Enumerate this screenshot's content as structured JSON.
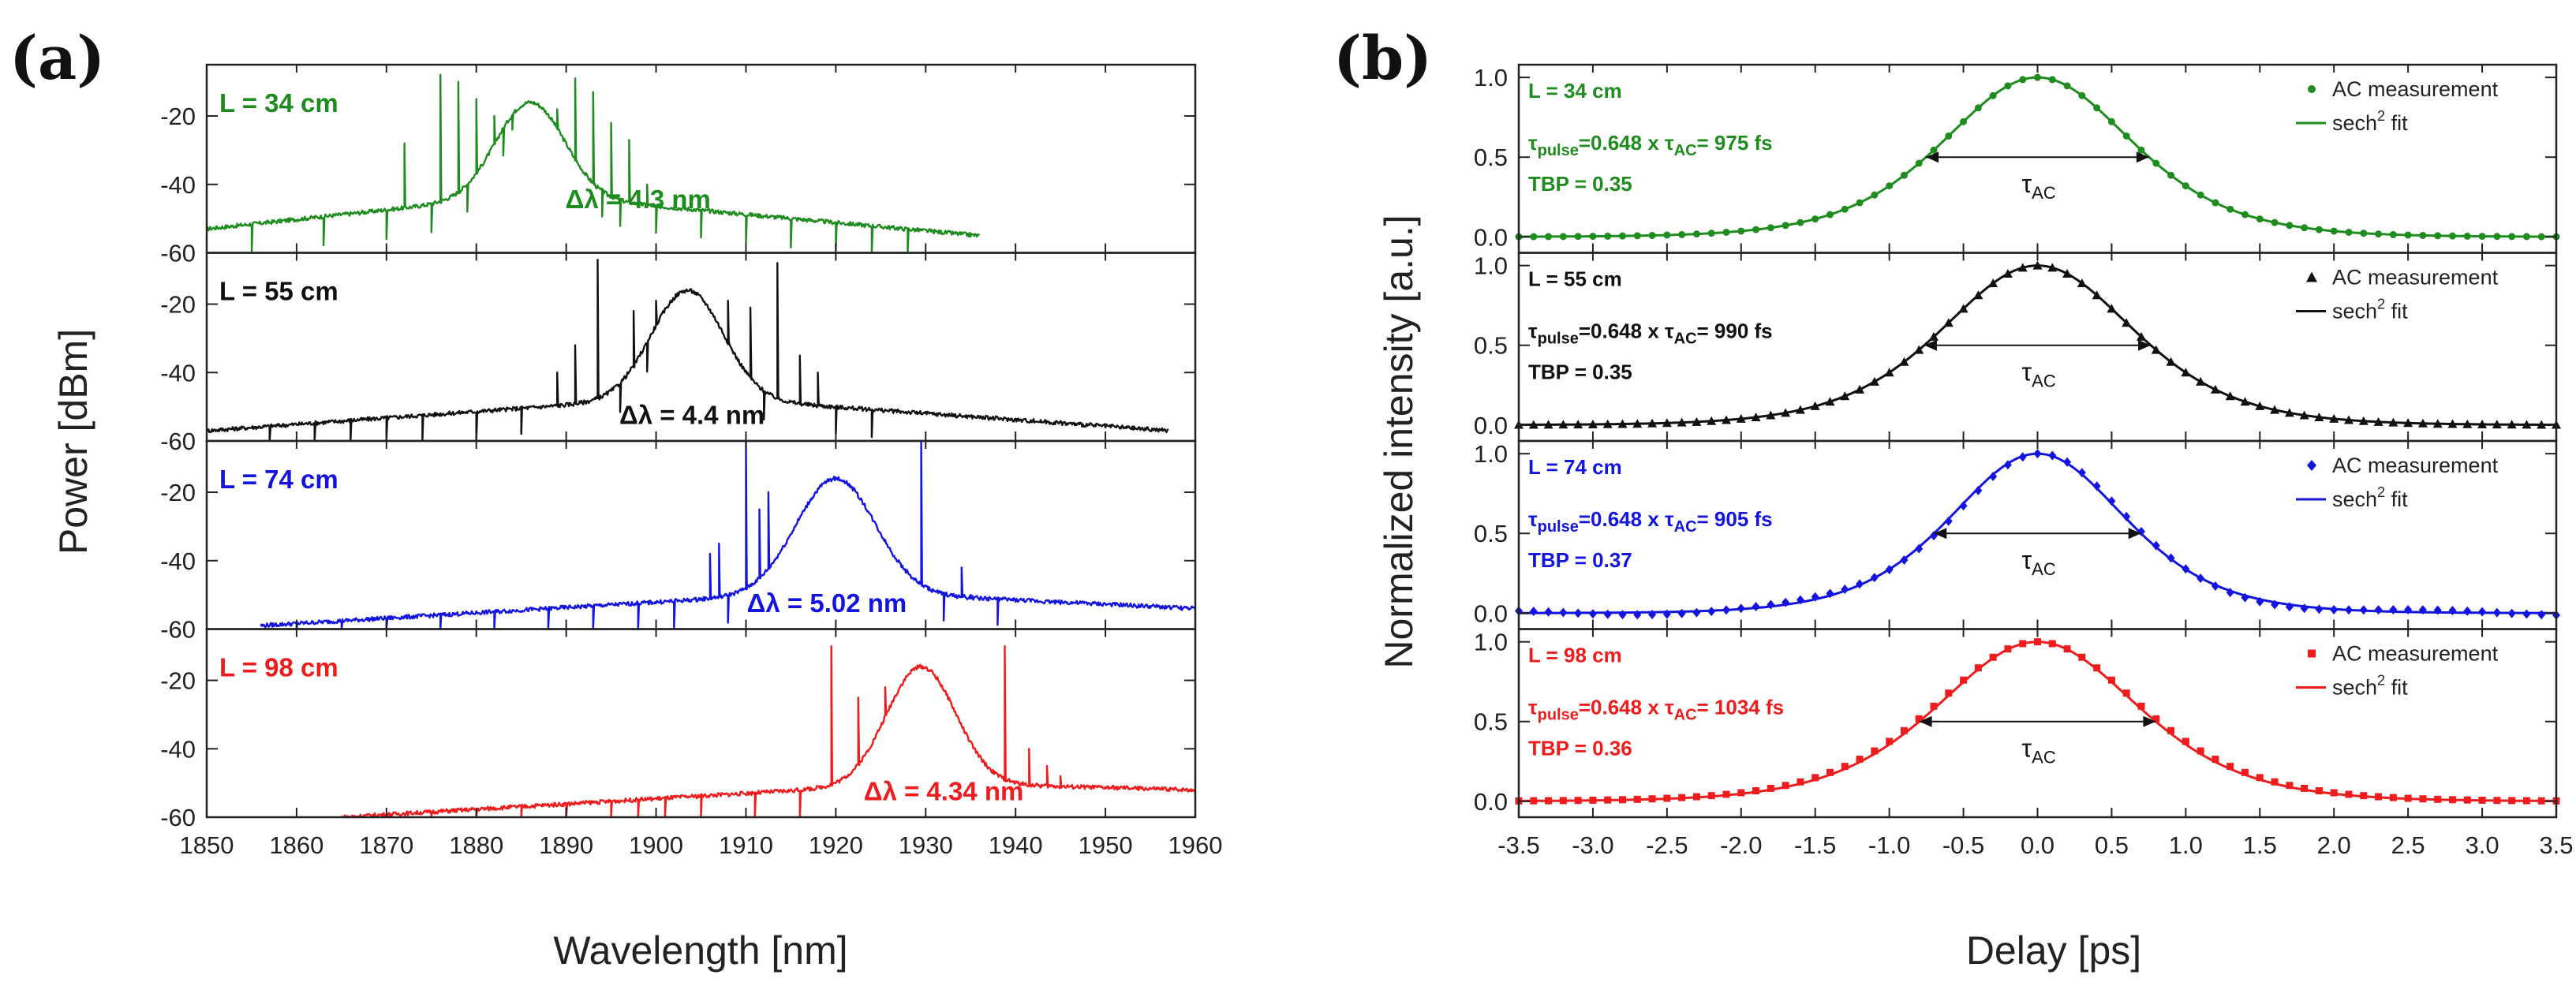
{
  "figure": {
    "panel_a_label": "(a)",
    "panel_b_label": "(b)"
  },
  "chart_data": [
    {
      "type": "line",
      "panel": "a",
      "xlabel": "Wavelength [nm]",
      "ylabel": "Power [dBm]",
      "xlim": [
        1850,
        1960
      ],
      "xticks": [
        1850,
        1860,
        1870,
        1880,
        1890,
        1900,
        1910,
        1920,
        1930,
        1940,
        1950,
        1960
      ],
      "ylim": [
        -60,
        -5
      ],
      "yticks": [
        -60,
        -40,
        -20
      ],
      "series": [
        {
          "name": "L = 34 cm",
          "label": "L = 34 cm",
          "color": "#1f8c1f",
          "annotation": "Δλ = 4.3 nm",
          "ann_x": 1898,
          "ann_y": -47,
          "start": 1850,
          "end": 1936,
          "peak_center": 1886,
          "peak_power": -16,
          "width": 5.3,
          "base_low": -53,
          "base_slope_end": -55,
          "spikes": [
            [
              1876,
              -8
            ],
            [
              1878,
              -10
            ],
            [
              1880,
              -15
            ],
            [
              1882,
              -20
            ],
            [
              1884,
              -24
            ],
            [
              1889,
              -18
            ],
            [
              1891,
              -9
            ],
            [
              1893,
              -13
            ],
            [
              1895,
              -22
            ],
            [
              1872,
              -28
            ],
            [
              1897,
              -27
            ],
            [
              1899,
              -40
            ],
            [
              1903,
              -44
            ]
          ],
          "dips": [
            1855,
            1863,
            1870,
            1875,
            1879,
            1883,
            1894,
            1896,
            1900,
            1905,
            1910,
            1915,
            1920,
            1924,
            1928
          ]
        },
        {
          "name": "L = 55 cm",
          "label": "L = 55 cm",
          "color": "#111111",
          "annotation": "Δλ = 4.4 nm",
          "ann_x": 1904,
          "ann_y": -55,
          "start": 1850,
          "end": 1957,
          "peak_center": 1903.5,
          "peak_power": -16,
          "width": 5.6,
          "base_low": -57,
          "base_slope_end": -57,
          "spikes": [
            [
              1893.5,
              -7
            ],
            [
              1897.5,
              -22
            ],
            [
              1900,
              -19
            ],
            [
              1908,
              -19
            ],
            [
              1910.5,
              -21
            ],
            [
              1913.5,
              -8
            ],
            [
              1889,
              -40
            ],
            [
              1891,
              -32
            ],
            [
              1916,
              -35
            ],
            [
              1918,
              -40
            ]
          ],
          "dips": [
            1857,
            1862,
            1866,
            1870,
            1874,
            1880,
            1885,
            1896,
            1899,
            1912,
            1920,
            1924
          ]
        },
        {
          "name": "L = 74 cm",
          "label": "L = 74 cm",
          "color": "#1414e0",
          "annotation": "Δλ = 5.02 nm",
          "ann_x": 1919,
          "ann_y": -55,
          "start": 1856,
          "end": 1960,
          "peak_center": 1920,
          "peak_power": -16,
          "width": 6.2,
          "base_low": -59,
          "base_slope_end": -54,
          "spikes": [
            [
              1910,
              -5
            ],
            [
              1911.5,
              -25
            ],
            [
              1912.5,
              -20
            ],
            [
              1929.5,
              -5
            ],
            [
              1906,
              -38
            ],
            [
              1907,
              -35
            ],
            [
              1934,
              -42
            ],
            [
              1935,
              -50
            ]
          ],
          "dips": [
            1860,
            1865,
            1870,
            1876,
            1882,
            1888,
            1893,
            1898,
            1902,
            1908,
            1932,
            1938
          ]
        },
        {
          "name": "L = 98 cm",
          "label": "L = 98 cm",
          "color": "#ee1c1c",
          "annotation": "Δλ = 4.34 nm",
          "ann_x": 1932,
          "ann_y": -55,
          "start": 1865,
          "end": 1960,
          "peak_center": 1929.5,
          "peak_power": -16,
          "width": 5.4,
          "base_low": -60,
          "base_slope_end": -52,
          "spikes": [
            [
              1919.5,
              -10
            ],
            [
              1922.5,
              -25
            ],
            [
              1925.5,
              -22
            ],
            [
              1938.8,
              -10
            ],
            [
              1941.5,
              -40
            ],
            [
              1943.5,
              -45
            ],
            [
              1945,
              -48
            ]
          ],
          "dips": [
            1870,
            1875,
            1880,
            1885,
            1890,
            1895,
            1898,
            1901,
            1905,
            1911,
            1916
          ]
        }
      ]
    },
    {
      "type": "line",
      "panel": "b",
      "xlabel": "Delay [ps]",
      "ylabel": "Normalized intensity [a.u.]",
      "xlim": [
        -3.5,
        3.5
      ],
      "xticks": [
        "-3.5",
        "-3.0",
        "-2.5",
        "-2.0",
        "-1.5",
        "-1.0",
        "-0.5",
        "0.0",
        "0.5",
        "1.0",
        "1.5",
        "2.0",
        "2.5",
        "3.0",
        "3.5"
      ],
      "ylim": [
        -0.1,
        1.08
      ],
      "yticks": [
        "0.0",
        "0.5",
        "1.0"
      ],
      "tau_label": "τ",
      "tau_sub": "AC",
      "series": [
        {
          "name": "L = 34 cm",
          "color": "#1f8c1f",
          "marker": "circle",
          "label": "L = 34 cm",
          "tau_pulse_label": "τ",
          "tau_pulse_sub": "pulse",
          "formula_mid": "=0.648 x τ",
          "formula_sub": "AC",
          "formula_end": "= 975 fs",
          "tbp": "TBP = 0.35",
          "legend_meas": "AC measurement",
          "legend_fit": "sech",
          "legend_fit_sup": "2",
          "legend_fit_end": " fit",
          "fwhm_ps": 1.505,
          "fit_offset": 0.0
        },
        {
          "name": "L = 55 cm",
          "color": "#111111",
          "marker": "triangle",
          "label": "L = 55 cm",
          "tau_pulse_label": "τ",
          "tau_pulse_sub": "pulse",
          "formula_mid": "=0.648 x τ",
          "formula_sub": "AC",
          "formula_end": "= 990 fs",
          "tbp": "TBP = 0.35",
          "legend_meas": "AC measurement",
          "legend_fit": "sech",
          "legend_fit_sup": "2",
          "legend_fit_end": " fit",
          "fwhm_ps": 1.528,
          "fit_offset": 0.0
        },
        {
          "name": "L = 74 cm",
          "color": "#1414e0",
          "marker": "diamond",
          "label": "L = 74 cm",
          "tau_pulse_label": "τ",
          "tau_pulse_sub": "pulse",
          "formula_mid": "=0.648 x τ",
          "formula_sub": "AC",
          "formula_end": "= 905 fs",
          "tbp": "TBP = 0.37",
          "legend_meas": "AC measurement",
          "legend_fit": "sech",
          "legend_fit_sup": "2",
          "legend_fit_end": " fit",
          "fwhm_ps": 1.397,
          "fit_offset": 0.0
        },
        {
          "name": "L = 98 cm",
          "color": "#ee1c1c",
          "marker": "square",
          "label": "L = 98 cm",
          "tau_pulse_label": "τ",
          "tau_pulse_sub": "pulse",
          "formula_mid": "=0.648 x τ",
          "formula_sub": "AC",
          "formula_end": "= 1034 fs",
          "tbp": "TBP = 0.36",
          "legend_meas": "AC measurement",
          "legend_fit": "sech",
          "legend_fit_sup": "2",
          "legend_fit_end": " fit",
          "fwhm_ps": 1.596,
          "fit_offset": 0.0
        }
      ]
    }
  ]
}
